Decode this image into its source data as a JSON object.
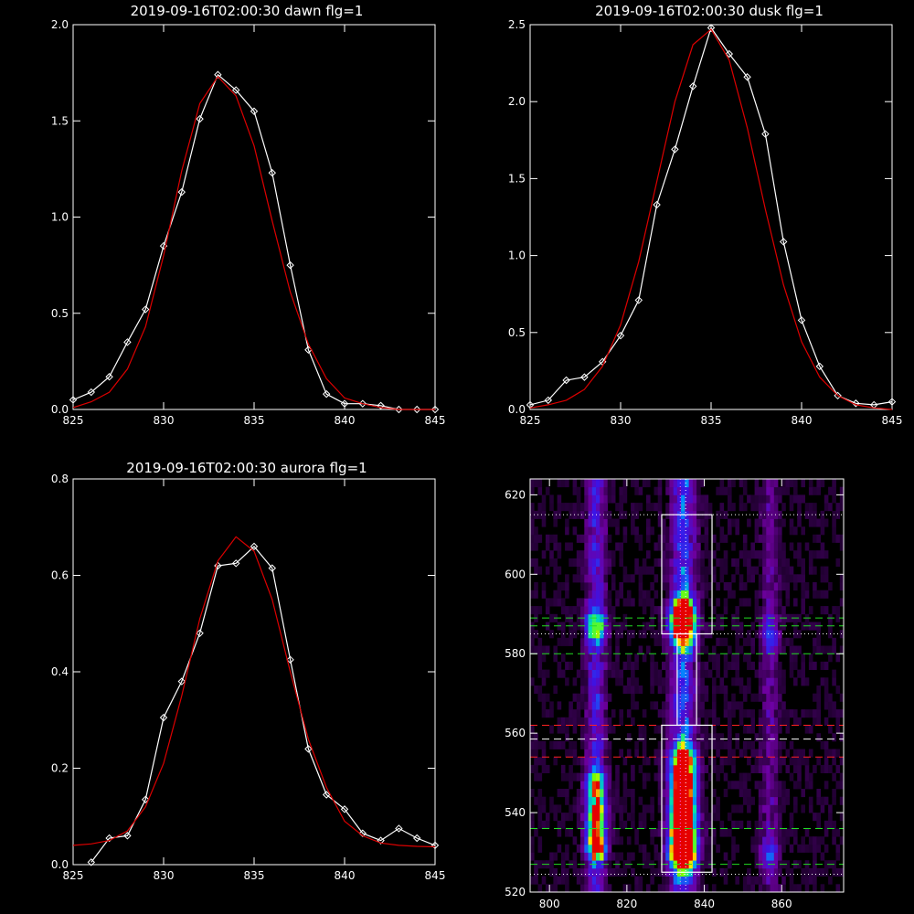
{
  "colors": {
    "background": "#000000",
    "axes": "#ffffff",
    "data": "#ffffff",
    "fit": "#dd0000",
    "green_lines": "#22dd22",
    "red_lines": "#ff2222"
  },
  "chart_data": [
    {
      "type": "line",
      "title": "2019-09-16T02:00:30 dawn flg=1",
      "xlim": [
        825,
        845
      ],
      "ylim": [
        0,
        2
      ],
      "xticks": [
        "825",
        "830",
        "835",
        "840",
        "845"
      ],
      "yticks": [
        "0.0",
        "0.5",
        "1.0",
        "1.5",
        "2.0"
      ],
      "series": [
        {
          "role": "data",
          "marker": "diamond",
          "x": [
            825,
            826,
            827,
            828,
            829,
            830,
            831,
            832,
            833,
            834,
            835,
            836,
            837,
            838,
            839,
            840,
            841,
            842,
            843,
            844,
            845
          ],
          "y": [
            0.05,
            0.09,
            0.17,
            0.35,
            0.52,
            0.85,
            1.13,
            1.51,
            1.74,
            1.66,
            1.55,
            1.23,
            0.75,
            0.31,
            0.08,
            0.03,
            0.03,
            0.02,
            0.0,
            0.0,
            0.0
          ]
        },
        {
          "role": "fit",
          "x": [
            825,
            826,
            827,
            828,
            829,
            830,
            831,
            832,
            833,
            834,
            835,
            836,
            837,
            838,
            839,
            840,
            841,
            842,
            843,
            844,
            845
          ],
          "y": [
            0.01,
            0.04,
            0.09,
            0.21,
            0.43,
            0.8,
            1.24,
            1.59,
            1.73,
            1.63,
            1.37,
            0.98,
            0.61,
            0.34,
            0.16,
            0.06,
            0.03,
            0.01,
            0.0,
            0.0,
            0.0
          ]
        }
      ]
    },
    {
      "type": "line",
      "title": "2019-09-16T02:00:30 dusk flg=1",
      "xlim": [
        825,
        845
      ],
      "ylim": [
        0,
        2.5
      ],
      "xticks": [
        "825",
        "830",
        "835",
        "840",
        "845"
      ],
      "yticks": [
        "0.0",
        "0.5",
        "1.0",
        "1.5",
        "2.0",
        "2.5"
      ],
      "series": [
        {
          "role": "data",
          "marker": "diamond",
          "x": [
            825,
            826,
            827,
            828,
            829,
            830,
            831,
            832,
            833,
            834,
            835,
            836,
            837,
            838,
            839,
            840,
            841,
            842,
            843,
            844,
            845
          ],
          "y": [
            0.03,
            0.06,
            0.19,
            0.21,
            0.31,
            0.48,
            0.71,
            1.33,
            1.69,
            2.1,
            2.48,
            2.31,
            2.16,
            1.79,
            1.09,
            0.58,
            0.28,
            0.09,
            0.04,
            0.03,
            0.05
          ]
        },
        {
          "role": "fit",
          "x": [
            825,
            826,
            827,
            828,
            829,
            830,
            831,
            832,
            833,
            834,
            835,
            836,
            837,
            838,
            839,
            840,
            841,
            842,
            843,
            844,
            845
          ],
          "y": [
            0.01,
            0.03,
            0.06,
            0.13,
            0.28,
            0.55,
            0.96,
            1.48,
            2.0,
            2.37,
            2.47,
            2.27,
            1.83,
            1.3,
            0.81,
            0.44,
            0.21,
            0.09,
            0.03,
            0.01,
            0.0
          ]
        }
      ]
    },
    {
      "type": "line",
      "title": "2019-09-16T02:00:30 aurora flg=1",
      "xlim": [
        825,
        845
      ],
      "ylim": [
        0,
        0.8
      ],
      "xticks": [
        "825",
        "830",
        "835",
        "840",
        "845"
      ],
      "yticks": [
        "0.0",
        "0.2",
        "0.4",
        "0.6",
        "0.8"
      ],
      "series": [
        {
          "role": "data",
          "marker": "diamond",
          "x": [
            826,
            827,
            828,
            829,
            830,
            831,
            832,
            833,
            834,
            835,
            836,
            837,
            838,
            839,
            840,
            841,
            842,
            843,
            844,
            845
          ],
          "y": [
            0.005,
            0.055,
            0.06,
            0.135,
            0.305,
            0.38,
            0.48,
            0.62,
            0.625,
            0.66,
            0.615,
            0.425,
            0.24,
            0.145,
            0.115,
            0.065,
            0.05,
            0.075,
            0.055,
            0.04
          ]
        },
        {
          "role": "fit",
          "x": [
            825,
            826,
            827,
            828,
            829,
            830,
            831,
            832,
            833,
            834,
            835,
            836,
            837,
            838,
            839,
            840,
            841,
            842,
            843,
            844,
            845
          ],
          "y": [
            0.04,
            0.043,
            0.05,
            0.07,
            0.12,
            0.21,
            0.35,
            0.51,
            0.63,
            0.68,
            0.65,
            0.55,
            0.4,
            0.26,
            0.16,
            0.09,
            0.06,
            0.045,
            0.04,
            0.038,
            0.037
          ]
        }
      ]
    },
    {
      "type": "heatmap",
      "title": "",
      "xlim": [
        795,
        876
      ],
      "ylim": [
        520,
        624
      ],
      "xticks": [
        "800",
        "820",
        "840",
        "860"
      ],
      "yticks": [
        "520",
        "540",
        "560",
        "580",
        "600",
        "620"
      ],
      "stripes": [
        {
          "x_center": 812,
          "x_halfwidth": 2.5,
          "spots": [
            [
              532,
              1.0
            ],
            [
              540,
              0.75
            ],
            [
              547,
              0.6
            ],
            [
              587,
              0.65
            ]
          ],
          "base": 0.35
        },
        {
          "x_center": 834.5,
          "x_halfwidth": 3.2,
          "spots": [
            [
              529,
              1.0
            ],
            [
              533,
              1.0
            ],
            [
              538,
              0.9
            ],
            [
              543,
              0.85
            ],
            [
              549,
              0.8
            ],
            [
              554,
              0.65
            ],
            [
              586,
              0.95
            ],
            [
              591,
              0.7
            ]
          ],
          "base": 0.45
        },
        {
          "x_center": 857,
          "x_halfwidth": 2.3,
          "spots": [
            [
              530,
              0.35
            ],
            [
              585,
              0.3
            ]
          ],
          "base": 0.2
        }
      ],
      "boxes": [
        {
          "x": [
            829,
            842
          ],
          "y": [
            585,
            615
          ]
        },
        {
          "x": [
            833,
            838
          ],
          "y": [
            562,
            585
          ]
        },
        {
          "x": [
            829,
            842
          ],
          "y": [
            525,
            562
          ]
        }
      ],
      "hlines": [
        {
          "y": 615,
          "color": "#ffffff",
          "dash": "dot"
        },
        {
          "y": 585,
          "color": "#ffffff",
          "dash": "dot"
        },
        {
          "y": 589,
          "color": "#22dd22",
          "dash": "dash"
        },
        {
          "y": 587,
          "color": "#22dd22",
          "dash": "dash"
        },
        {
          "y": 580,
          "color": "#22dd22",
          "dash": "dash"
        },
        {
          "y": 562,
          "color": "#ff2222",
          "dash": "dash"
        },
        {
          "y": 558.5,
          "color": "#ffffff",
          "dash": "dash"
        },
        {
          "y": 554,
          "color": "#ff2222",
          "dash": "dash"
        },
        {
          "y": 536,
          "color": "#22dd22",
          "dash": "dash"
        },
        {
          "y": 527,
          "color": "#22dd22",
          "dash": "dash"
        },
        {
          "y": 524.5,
          "color": "#ffffff",
          "dash": "dot"
        }
      ],
      "vlines": [
        {
          "x": 833.8,
          "color": "#ff66ff",
          "dash": "dot"
        },
        {
          "x": 835.2,
          "color": "#ffffff",
          "dash": "dot"
        }
      ]
    }
  ]
}
